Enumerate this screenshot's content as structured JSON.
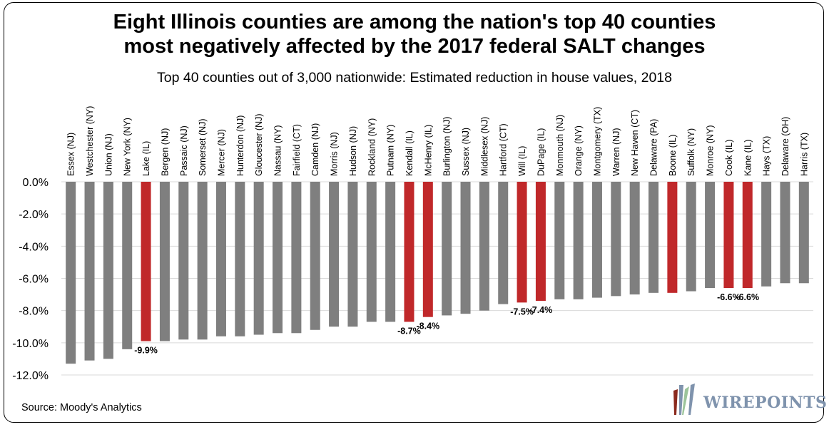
{
  "chart_data": {
    "type": "bar",
    "title": "Eight Illinois counties are among the nation's top 40 counties most negatively affected by the 2017 federal SALT changes",
    "title_lines": [
      "Eight Illinois counties are among the nation's top 40 counties",
      "most negatively affected by the 2017 federal SALT changes"
    ],
    "subtitle": "Top 40 counties out of 3,000 nationwide: Estimated reduction in house values, 2018",
    "xlabel": "",
    "ylabel": "",
    "ylim": [
      -12,
      0
    ],
    "yticks": [
      0,
      -2,
      -4,
      -6,
      -8,
      -10,
      -12
    ],
    "ytick_labels": [
      "0.0%",
      "-2.0%",
      "-4.0%",
      "-6.0%",
      "-8.0%",
      "-10.0%",
      "-12.0%"
    ],
    "grid": true,
    "categories": [
      "Essex (NJ)",
      "Westchester (NY)",
      "Union (NJ)",
      "New York (NY)",
      "Lake (IL)",
      "Bergen (NJ)",
      "Passaic (NJ)",
      "Somerset (NJ)",
      "Mercer (NJ)",
      "Hunterdon (NJ)",
      "Gloucester (NJ)",
      "Nassau (NY)",
      "Fairfield (CT)",
      "Camden (NJ)",
      "Morris (NJ)",
      "Hudson (NJ)",
      "Rockland (NY)",
      "Putnam (NY)",
      "Kendall (IL)",
      "McHenry (IL)",
      "Burlington (NJ)",
      "Sussex (NJ)",
      "Middlesex (NJ)",
      "Hartford (CT)",
      "Will (IL)",
      "DuPage (IL)",
      "Monmouth (NJ)",
      "Orange (NY)",
      "Montgomery (TX)",
      "Warren (NJ)",
      "New Haven (CT)",
      "Delaware (PA)",
      "Boone (IL)",
      "Suffolk (NY)",
      "Monroe (NY)",
      "Cook (IL)",
      "Kane (IL)",
      "Hays (TX)",
      "Delaware (OH)",
      "Harris (TX)"
    ],
    "values": [
      -11.3,
      -11.1,
      -11.0,
      -10.4,
      -9.9,
      -9.9,
      -9.8,
      -9.8,
      -9.6,
      -9.6,
      -9.5,
      -9.4,
      -9.4,
      -9.2,
      -9.0,
      -9.0,
      -8.7,
      -8.7,
      -8.7,
      -8.4,
      -8.3,
      -8.2,
      -8.0,
      -7.6,
      -7.5,
      -7.4,
      -7.3,
      -7.3,
      -7.2,
      -7.1,
      -7.0,
      -6.9,
      -6.9,
      -6.8,
      -6.6,
      -6.6,
      -6.6,
      -6.5,
      -6.3,
      -6.3
    ],
    "highlighted": [
      "Lake (IL)",
      "Kendall (IL)",
      "McHenry (IL)",
      "Will (IL)",
      "DuPage (IL)",
      "Boone (IL)",
      "Cook (IL)",
      "Kane (IL)"
    ],
    "data_labels": {
      "Lake (IL)": "-9.9%",
      "Kendall (IL)": "-8.7%",
      "McHenry (IL)": "-8.4%",
      "Will (IL)": "-7.5%",
      "DuPage (IL)": "-7.4%",
      "Cook (IL)": "-6.6%",
      "Kane (IL)": "-6.6%"
    },
    "colors": {
      "default": "#7f7f7f",
      "highlight": "#c0282a",
      "grid": "#d9d9d9"
    }
  },
  "source": "Source: Moody's Analytics",
  "logo": {
    "text": "WIREPOINTS",
    "colors": [
      "#8b2a1e",
      "#9cc49a",
      "#7f93ad"
    ]
  }
}
